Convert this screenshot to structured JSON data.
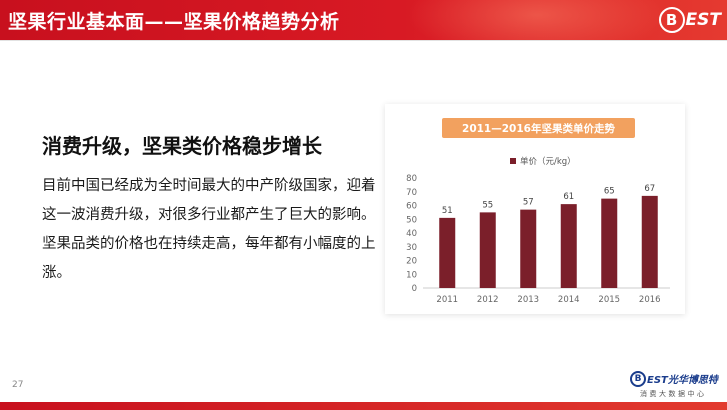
{
  "header": {
    "title": "坚果行业基本面——坚果价格趋势分析",
    "logo_letter": "B",
    "logo_text": "EST"
  },
  "headline": "消费升级，坚果类价格稳步增长",
  "body_text": "目前中国已经成为全时间最大的中产阶级国家，迎着这一波消费升级，对很多行业都产生了巨大的影响。坚果品类的价格也在持续走高，每年都有小幅度的上涨。",
  "chart_data": {
    "type": "bar",
    "title": "2011—2016年坚果类单价走势",
    "categories": [
      "2011",
      "2012",
      "2013",
      "2014",
      "2015",
      "2016"
    ],
    "series": [
      {
        "name": "单价（元/kg）",
        "values": [
          51,
          55,
          57,
          61,
          65,
          67
        ]
      }
    ],
    "yticks": [
      "0",
      "10",
      "20",
      "30",
      "40",
      "50",
      "60",
      "70",
      "80"
    ],
    "ylim": [
      0,
      80
    ],
    "legend": "top-left",
    "grid": false,
    "bar_color": "#7b1f2a",
    "title_bar_color": "#f2a15f"
  },
  "page_number": "27",
  "footer_logo": {
    "letter": "B",
    "name": "EST光华博思特",
    "subtitle": "消费大数据中心"
  },
  "colors": {
    "header_red": "#c8101e",
    "accent_orange": "#f2a15f",
    "bar_maroon": "#7b1f2a"
  }
}
